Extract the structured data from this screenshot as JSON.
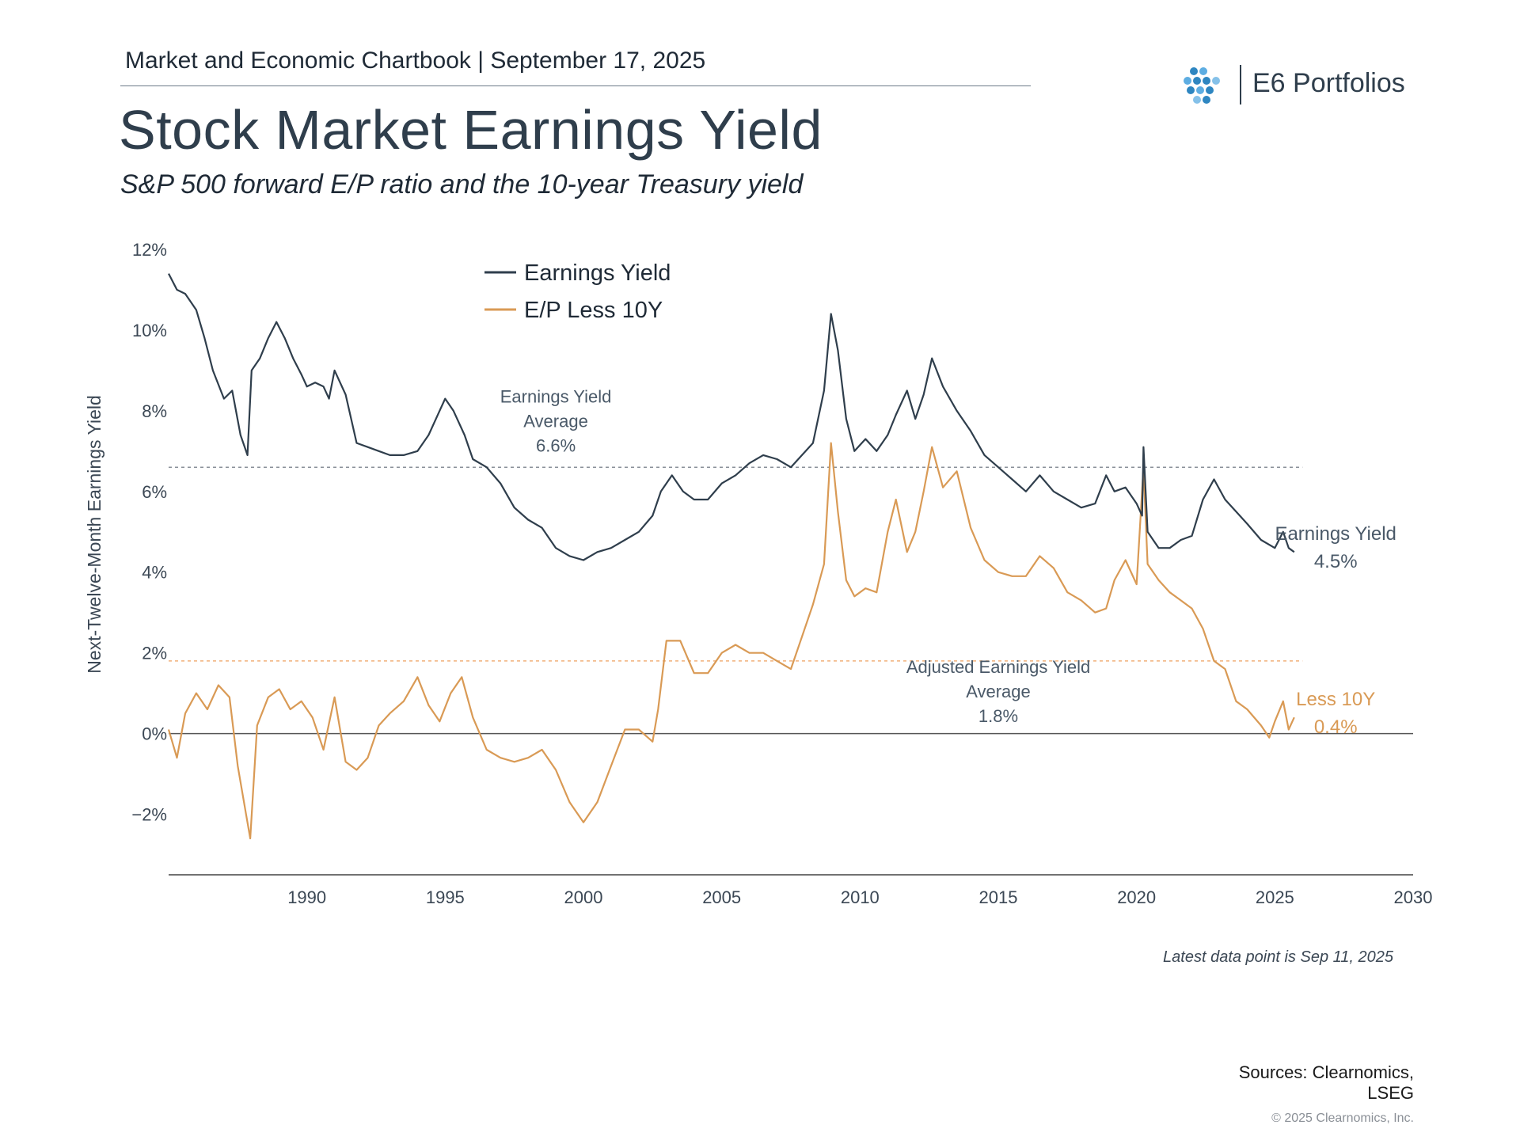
{
  "header": {
    "text": "Market and Economic Chartbook | September 17, 2025"
  },
  "brand": {
    "name": "E6 Portfolios",
    "logo_icon": "diamond-dots-icon",
    "logo_color": "#2e86c1"
  },
  "title": "Stock Market Earnings Yield",
  "subtitle": "S&P 500 forward E/P ratio and the 10-year Treasury yield",
  "footer": {
    "note": "Latest data point is Sep 11, 2025",
    "sources": [
      "Sources: Clearnomics,",
      "LSEG"
    ],
    "copyright": "© 2025 Clearnomics, Inc."
  },
  "chart_data": {
    "type": "line",
    "ylabel": "Next-Twelve-Month Earnings Yield",
    "xlim": [
      1985,
      2030
    ],
    "ylim": [
      -3.5,
      12
    ],
    "y_ticks": [
      {
        "value": 12,
        "label": "12%"
      },
      {
        "value": 10,
        "label": "10%"
      },
      {
        "value": 8,
        "label": "8%"
      },
      {
        "value": 6,
        "label": "6%"
      },
      {
        "value": 4,
        "label": "4%"
      },
      {
        "value": 2,
        "label": "2%"
      },
      {
        "value": 0,
        "label": "0%"
      },
      {
        "value": -2,
        "label": "−2%"
      }
    ],
    "x_ticks": [
      1990,
      1995,
      2000,
      2005,
      2010,
      2015,
      2020,
      2025,
      2030
    ],
    "legend_position": "top-left",
    "series": [
      {
        "name": "Earnings Yield",
        "color": "#2f3e4c",
        "points": [
          [
            1985.0,
            11.4
          ],
          [
            1985.3,
            11.0
          ],
          [
            1985.6,
            10.9
          ],
          [
            1986.0,
            10.5
          ],
          [
            1986.3,
            9.8
          ],
          [
            1986.6,
            9.0
          ],
          [
            1987.0,
            8.3
          ],
          [
            1987.3,
            8.5
          ],
          [
            1987.6,
            7.4
          ],
          [
            1987.85,
            6.9
          ],
          [
            1988.0,
            9.0
          ],
          [
            1988.3,
            9.3
          ],
          [
            1988.6,
            9.8
          ],
          [
            1988.9,
            10.2
          ],
          [
            1989.2,
            9.8
          ],
          [
            1989.5,
            9.3
          ],
          [
            1989.8,
            8.9
          ],
          [
            1990.0,
            8.6
          ],
          [
            1990.3,
            8.7
          ],
          [
            1990.6,
            8.6
          ],
          [
            1990.8,
            8.3
          ],
          [
            1991.0,
            9.0
          ],
          [
            1991.4,
            8.4
          ],
          [
            1991.8,
            7.2
          ],
          [
            1992.2,
            7.1
          ],
          [
            1992.6,
            7.0
          ],
          [
            1993.0,
            6.9
          ],
          [
            1993.5,
            6.9
          ],
          [
            1994.0,
            7.0
          ],
          [
            1994.4,
            7.4
          ],
          [
            1994.8,
            8.0
          ],
          [
            1995.0,
            8.3
          ],
          [
            1995.3,
            8.0
          ],
          [
            1995.7,
            7.4
          ],
          [
            1996.0,
            6.8
          ],
          [
            1996.5,
            6.6
          ],
          [
            1997.0,
            6.2
          ],
          [
            1997.5,
            5.6
          ],
          [
            1998.0,
            5.3
          ],
          [
            1998.5,
            5.1
          ],
          [
            1999.0,
            4.6
          ],
          [
            1999.5,
            4.4
          ],
          [
            2000.0,
            4.3
          ],
          [
            2000.5,
            4.5
          ],
          [
            2001.0,
            4.6
          ],
          [
            2001.5,
            4.8
          ],
          [
            2002.0,
            5.0
          ],
          [
            2002.5,
            5.4
          ],
          [
            2002.8,
            6.0
          ],
          [
            2003.2,
            6.4
          ],
          [
            2003.6,
            6.0
          ],
          [
            2004.0,
            5.8
          ],
          [
            2004.5,
            5.8
          ],
          [
            2005.0,
            6.2
          ],
          [
            2005.5,
            6.4
          ],
          [
            2006.0,
            6.7
          ],
          [
            2006.5,
            6.9
          ],
          [
            2007.0,
            6.8
          ],
          [
            2007.5,
            6.6
          ],
          [
            2007.9,
            6.9
          ],
          [
            2008.3,
            7.2
          ],
          [
            2008.7,
            8.5
          ],
          [
            2008.95,
            10.4
          ],
          [
            2009.2,
            9.5
          ],
          [
            2009.5,
            7.8
          ],
          [
            2009.8,
            7.0
          ],
          [
            2010.2,
            7.3
          ],
          [
            2010.6,
            7.0
          ],
          [
            2011.0,
            7.4
          ],
          [
            2011.3,
            7.9
          ],
          [
            2011.7,
            8.5
          ],
          [
            2012.0,
            7.8
          ],
          [
            2012.3,
            8.4
          ],
          [
            2012.6,
            9.3
          ],
          [
            2013.0,
            8.6
          ],
          [
            2013.5,
            8.0
          ],
          [
            2014.0,
            7.5
          ],
          [
            2014.5,
            6.9
          ],
          [
            2015.0,
            6.6
          ],
          [
            2015.5,
            6.3
          ],
          [
            2016.0,
            6.0
          ],
          [
            2016.5,
            6.4
          ],
          [
            2017.0,
            6.0
          ],
          [
            2017.5,
            5.8
          ],
          [
            2018.0,
            5.6
          ],
          [
            2018.5,
            5.7
          ],
          [
            2018.9,
            6.4
          ],
          [
            2019.2,
            6.0
          ],
          [
            2019.6,
            6.1
          ],
          [
            2020.0,
            5.7
          ],
          [
            2020.2,
            5.4
          ],
          [
            2020.25,
            7.1
          ],
          [
            2020.4,
            5.0
          ],
          [
            2020.8,
            4.6
          ],
          [
            2021.2,
            4.6
          ],
          [
            2021.6,
            4.8
          ],
          [
            2022.0,
            4.9
          ],
          [
            2022.4,
            5.8
          ],
          [
            2022.8,
            6.3
          ],
          [
            2023.2,
            5.8
          ],
          [
            2023.6,
            5.5
          ],
          [
            2024.0,
            5.2
          ],
          [
            2024.5,
            4.8
          ],
          [
            2025.0,
            4.6
          ],
          [
            2025.3,
            5.0
          ],
          [
            2025.5,
            4.6
          ],
          [
            2025.7,
            4.5
          ]
        ]
      },
      {
        "name": "E/P Less 10Y",
        "color": "#d99a55",
        "points": [
          [
            1985.0,
            0.1
          ],
          [
            1985.3,
            -0.6
          ],
          [
            1985.6,
            0.5
          ],
          [
            1986.0,
            1.0
          ],
          [
            1986.4,
            0.6
          ],
          [
            1986.8,
            1.2
          ],
          [
            1987.2,
            0.9
          ],
          [
            1987.5,
            -0.8
          ],
          [
            1987.8,
            -2.0
          ],
          [
            1987.95,
            -2.6
          ],
          [
            1988.2,
            0.2
          ],
          [
            1988.6,
            0.9
          ],
          [
            1989.0,
            1.1
          ],
          [
            1989.4,
            0.6
          ],
          [
            1989.8,
            0.8
          ],
          [
            1990.2,
            0.4
          ],
          [
            1990.6,
            -0.4
          ],
          [
            1991.0,
            0.9
          ],
          [
            1991.4,
            -0.7
          ],
          [
            1991.8,
            -0.9
          ],
          [
            1992.2,
            -0.6
          ],
          [
            1992.6,
            0.2
          ],
          [
            1993.0,
            0.5
          ],
          [
            1993.5,
            0.8
          ],
          [
            1994.0,
            1.4
          ],
          [
            1994.4,
            0.7
          ],
          [
            1994.8,
            0.3
          ],
          [
            1995.2,
            1.0
          ],
          [
            1995.6,
            1.4
          ],
          [
            1996.0,
            0.4
          ],
          [
            1996.5,
            -0.4
          ],
          [
            1997.0,
            -0.6
          ],
          [
            1997.5,
            -0.7
          ],
          [
            1998.0,
            -0.6
          ],
          [
            1998.5,
            -0.4
          ],
          [
            1999.0,
            -0.9
          ],
          [
            1999.5,
            -1.7
          ],
          [
            2000.0,
            -2.2
          ],
          [
            2000.5,
            -1.7
          ],
          [
            2001.0,
            -0.8
          ],
          [
            2001.5,
            0.1
          ],
          [
            2002.0,
            0.1
          ],
          [
            2002.5,
            -0.2
          ],
          [
            2002.7,
            0.6
          ],
          [
            2003.0,
            2.3
          ],
          [
            2003.5,
            2.3
          ],
          [
            2004.0,
            1.5
          ],
          [
            2004.5,
            1.5
          ],
          [
            2005.0,
            2.0
          ],
          [
            2005.5,
            2.2
          ],
          [
            2006.0,
            2.0
          ],
          [
            2006.5,
            2.0
          ],
          [
            2007.0,
            1.8
          ],
          [
            2007.5,
            1.6
          ],
          [
            2007.9,
            2.4
          ],
          [
            2008.3,
            3.2
          ],
          [
            2008.7,
            4.2
          ],
          [
            2008.95,
            7.2
          ],
          [
            2009.2,
            5.5
          ],
          [
            2009.5,
            3.8
          ],
          [
            2009.8,
            3.4
          ],
          [
            2010.2,
            3.6
          ],
          [
            2010.6,
            3.5
          ],
          [
            2011.0,
            5.0
          ],
          [
            2011.3,
            5.8
          ],
          [
            2011.7,
            4.5
          ],
          [
            2012.0,
            5.0
          ],
          [
            2012.3,
            6.0
          ],
          [
            2012.6,
            7.1
          ],
          [
            2013.0,
            6.1
          ],
          [
            2013.5,
            6.5
          ],
          [
            2014.0,
            5.1
          ],
          [
            2014.5,
            4.3
          ],
          [
            2015.0,
            4.0
          ],
          [
            2015.5,
            3.9
          ],
          [
            2016.0,
            3.9
          ],
          [
            2016.5,
            4.4
          ],
          [
            2017.0,
            4.1
          ],
          [
            2017.5,
            3.5
          ],
          [
            2018.0,
            3.3
          ],
          [
            2018.5,
            3.0
          ],
          [
            2018.9,
            3.1
          ],
          [
            2019.2,
            3.8
          ],
          [
            2019.6,
            4.3
          ],
          [
            2020.0,
            3.7
          ],
          [
            2020.25,
            6.6
          ],
          [
            2020.4,
            4.2
          ],
          [
            2020.8,
            3.8
          ],
          [
            2021.2,
            3.5
          ],
          [
            2021.6,
            3.3
          ],
          [
            2022.0,
            3.1
          ],
          [
            2022.4,
            2.6
          ],
          [
            2022.8,
            1.8
          ],
          [
            2023.2,
            1.6
          ],
          [
            2023.6,
            0.8
          ],
          [
            2024.0,
            0.6
          ],
          [
            2024.5,
            0.2
          ],
          [
            2024.8,
            -0.1
          ],
          [
            2025.0,
            0.3
          ],
          [
            2025.3,
            0.8
          ],
          [
            2025.5,
            0.1
          ],
          [
            2025.7,
            0.4
          ]
        ]
      }
    ],
    "reference_lines": [
      {
        "value": 6.6,
        "color": "#8a9099",
        "label": [
          "Earnings Yield",
          "Average",
          "6.6%"
        ],
        "label_x": 1999.0,
        "label_y": 8.2
      },
      {
        "value": 1.8,
        "color": "#f0b07a",
        "label": [
          "Adjusted Earnings Yield",
          "Average",
          "1.8%"
        ],
        "label_x": 2015.0,
        "label_y": 1.5
      }
    ],
    "end_labels": [
      {
        "series": "Earnings Yield",
        "text": [
          "Earnings Yield",
          "4.5%"
        ],
        "color": "#4a5968",
        "x": 2027.2,
        "y": 4.8
      },
      {
        "series": "E/P Less 10Y",
        "text": [
          "Less 10Y",
          "0.4%"
        ],
        "color": "#d99a55",
        "x": 2027.2,
        "y": 0.7
      }
    ]
  }
}
